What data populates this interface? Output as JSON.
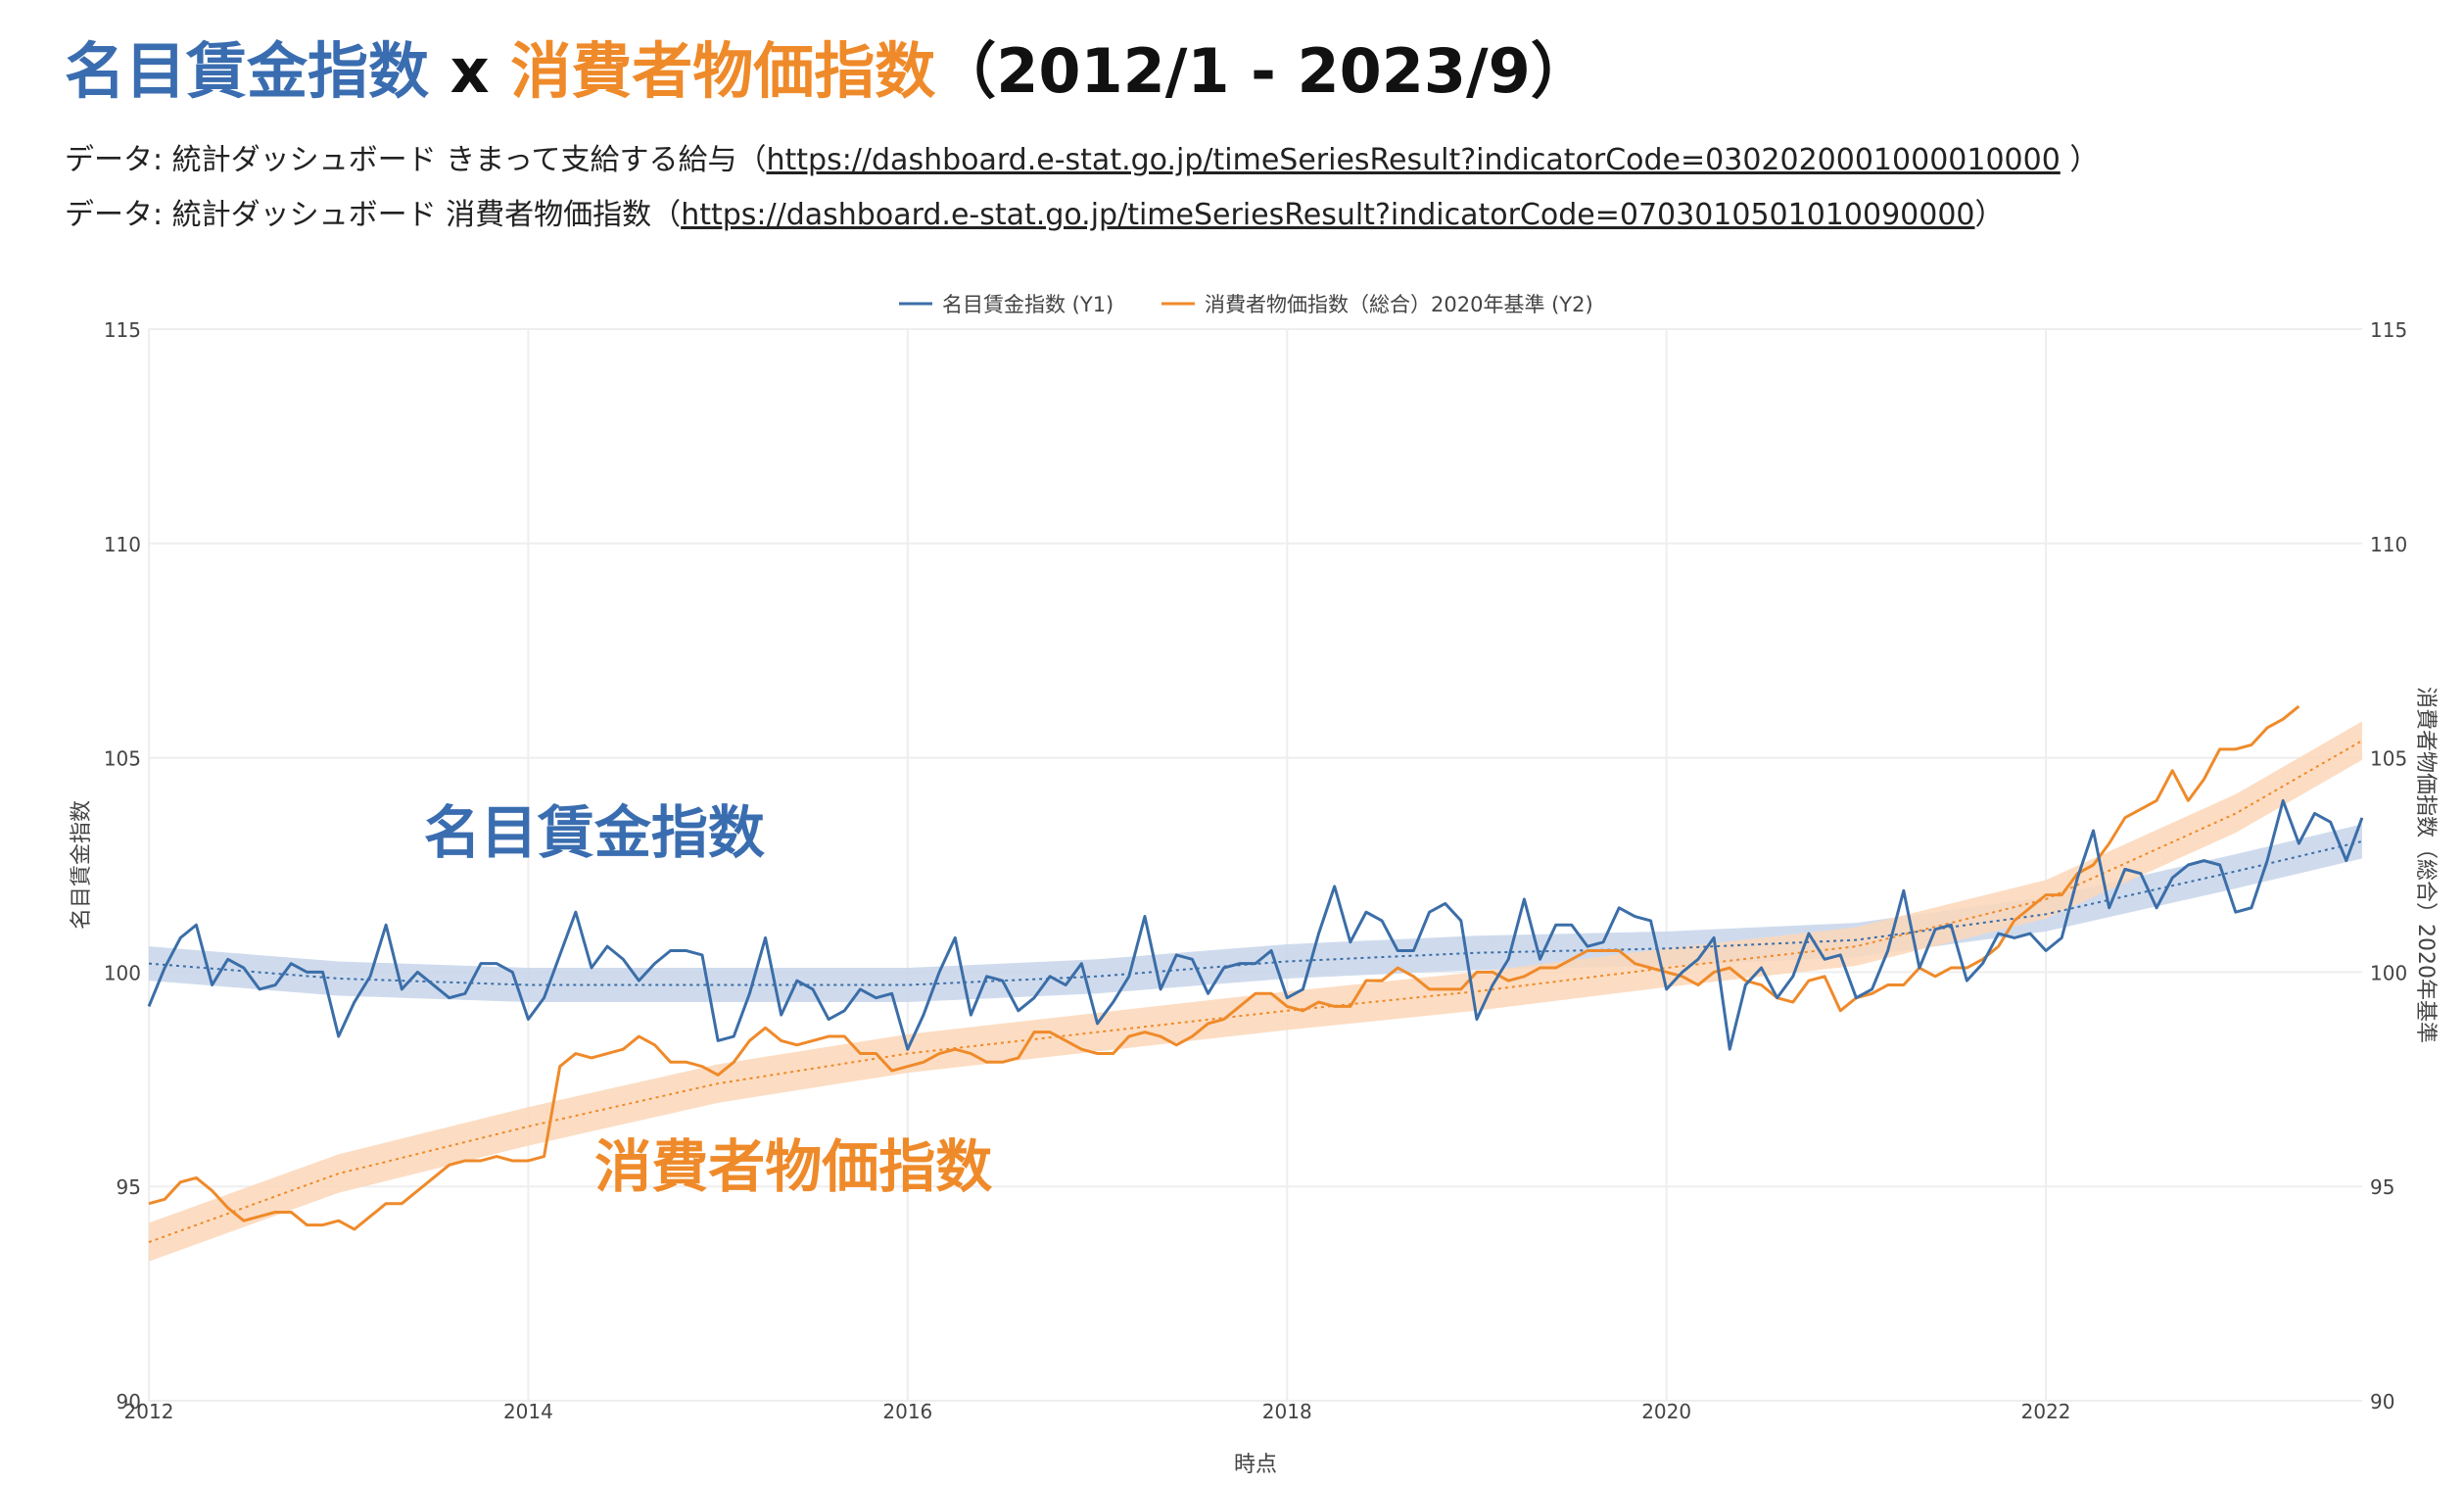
{
  "header": {
    "title_part1": "名目賃金指数",
    "title_part2": " x ",
    "title_part3": "消費者物価指数",
    "title_part4": "（2012/1 - 2023/9）",
    "source1_prefix": "データ: 統計ダッシュボード きまって支給する給与（",
    "source1_link": "https://dashboard.e-stat.go.jp/timeSeriesResult?indicatorCode=0302020001000010000",
    "source1_suffix": " ）",
    "source2_prefix": "データ: 統計ダッシュボード 消費者物価指数（",
    "source2_link": "https://dashboard.e-stat.go.jp/timeSeriesResult?indicatorCode=0703010501010090000",
    "source2_suffix": "）"
  },
  "colors": {
    "wage": "#3b6ea8",
    "cpi": "#ef8a2a",
    "wage_band": "#c7d5ea",
    "cpi_band": "#fbd7b8",
    "grid": "#eeeeee"
  },
  "chart_data": {
    "type": "line",
    "xlabel": "時点",
    "ylabel_left": "名目賃金指数",
    "ylabel_right": "消費者物価指数（総合）2020年基準",
    "xlim": [
      2012.0,
      2023.667
    ],
    "ylim": [
      90,
      115
    ],
    "y2lim": [
      90,
      115
    ],
    "x_ticks": [
      2012,
      2014,
      2016,
      2018,
      2020,
      2022
    ],
    "y_ticks": [
      90,
      95,
      100,
      105,
      110,
      115
    ],
    "legend_position": "top-center",
    "annotations": [
      {
        "text": "名目賃金指数",
        "color": "#3a6db0",
        "x": 2013.45,
        "y": 102.8
      },
      {
        "text": "消費者物価指数",
        "color": "#ef8a2a",
        "x": 2014.35,
        "y": 95.0
      }
    ],
    "series": [
      {
        "name": "名目賃金指数 (Y1)",
        "axis": "y1",
        "x_start": 2012.0,
        "x_step_months": 1,
        "values": [
          99.2,
          100.1,
          100.8,
          101.1,
          99.7,
          100.3,
          100.1,
          99.6,
          99.7,
          100.2,
          100.0,
          100.0,
          98.5,
          99.3,
          99.9,
          101.1,
          99.6,
          100.0,
          99.7,
          99.4,
          99.5,
          100.2,
          100.2,
          100.0,
          98.9,
          99.4,
          100.4,
          101.4,
          100.1,
          100.6,
          100.3,
          99.8,
          100.2,
          100.5,
          100.5,
          100.4,
          98.4,
          98.5,
          99.5,
          100.8,
          99.0,
          99.8,
          99.6,
          98.9,
          99.1,
          99.6,
          99.4,
          99.5,
          98.2,
          99.0,
          100.0,
          100.8,
          99.0,
          99.9,
          99.8,
          99.1,
          99.4,
          99.9,
          99.7,
          100.2,
          98.8,
          99.3,
          99.9,
          101.3,
          99.6,
          100.4,
          100.3,
          99.5,
          100.1,
          100.2,
          100.2,
          100.5,
          99.4,
          99.6,
          100.9,
          102.0,
          100.7,
          101.4,
          101.2,
          100.5,
          100.5,
          101.4,
          101.6,
          101.2,
          98.9,
          99.7,
          100.3,
          101.7,
          100.3,
          101.1,
          101.1,
          100.6,
          100.7,
          101.5,
          101.3,
          101.2,
          99.6,
          100.0,
          100.3,
          100.8,
          98.2,
          99.7,
          100.1,
          99.4,
          99.9,
          100.9,
          100.3,
          100.4,
          99.4,
          99.6,
          100.5,
          101.9,
          100.1,
          101.0,
          101.1,
          99.8,
          100.2,
          100.9,
          100.8,
          100.9,
          100.5,
          100.8,
          102.2,
          103.3,
          101.5,
          102.4,
          102.3,
          101.5,
          102.2,
          102.5,
          102.6,
          102.5,
          101.4,
          101.5,
          102.6,
          104.0,
          103.0,
          103.7,
          103.5,
          102.6,
          103.6
        ]
      },
      {
        "name": "消費者物価指数（総合）2020年基準 (Y2)",
        "axis": "y2",
        "x_start": 2012.0,
        "x_step_months": 1,
        "values": [
          94.6,
          94.7,
          95.1,
          95.2,
          94.9,
          94.5,
          94.2,
          94.3,
          94.4,
          94.4,
          94.1,
          94.1,
          94.2,
          94.0,
          94.3,
          94.6,
          94.6,
          94.9,
          95.2,
          95.5,
          95.6,
          95.6,
          95.7,
          95.6,
          95.6,
          95.7,
          97.8,
          98.1,
          98.0,
          98.1,
          98.2,
          98.5,
          98.3,
          97.9,
          97.9,
          97.8,
          97.6,
          97.9,
          98.4,
          98.7,
          98.4,
          98.3,
          98.4,
          98.5,
          98.5,
          98.1,
          98.1,
          97.7,
          97.8,
          97.9,
          98.1,
          98.2,
          98.1,
          97.9,
          97.9,
          98.0,
          98.6,
          98.6,
          98.4,
          98.2,
          98.1,
          98.1,
          98.5,
          98.6,
          98.5,
          98.3,
          98.5,
          98.8,
          98.9,
          99.2,
          99.5,
          99.5,
          99.2,
          99.1,
          99.3,
          99.2,
          99.2,
          99.8,
          99.8,
          100.1,
          99.9,
          99.6,
          99.6,
          99.6,
          100.0,
          100.0,
          99.8,
          99.9,
          100.1,
          100.1,
          100.3,
          100.5,
          100.5,
          100.5,
          100.2,
          100.1,
          100.0,
          99.9,
          99.7,
          100.0,
          100.1,
          99.8,
          99.7,
          99.4,
          99.3,
          99.8,
          99.9,
          99.1,
          99.4,
          99.5,
          99.7,
          99.7,
          100.1,
          99.9,
          100.1,
          100.1,
          100.3,
          100.6,
          101.2,
          101.5,
          101.8,
          101.8,
          102.3,
          102.5,
          103.0,
          103.6,
          103.8,
          104.0,
          104.7,
          104.0,
          104.5,
          105.2,
          105.2,
          105.3,
          105.7,
          105.9,
          106.2
        ]
      },
      {
        "name": "名目賃金指数 trend",
        "axis": "y1",
        "style": "dotted",
        "x": [
          2012.0,
          2013.0,
          2014.0,
          2015.0,
          2016.0,
          2017.0,
          2018.0,
          2019.0,
          2020.0,
          2021.0,
          2022.0,
          2023.0,
          2023.667
        ],
        "values": [
          100.2,
          99.85,
          99.7,
          99.7,
          99.7,
          99.9,
          100.25,
          100.45,
          100.55,
          100.75,
          101.35,
          102.35,
          103.05
        ],
        "band_halfwidth": 0.4
      },
      {
        "name": "消費者物価指数 trend",
        "axis": "y2",
        "style": "dotted",
        "x": [
          2012.0,
          2013.0,
          2014.0,
          2015.0,
          2016.0,
          2017.0,
          2018.0,
          2019.0,
          2020.0,
          2021.0,
          2022.0,
          2023.0,
          2023.667
        ],
        "values": [
          93.7,
          95.3,
          96.4,
          97.4,
          98.1,
          98.6,
          99.1,
          99.55,
          100.1,
          100.6,
          101.7,
          103.7,
          105.4
        ],
        "band_halfwidth": 0.45
      }
    ]
  }
}
